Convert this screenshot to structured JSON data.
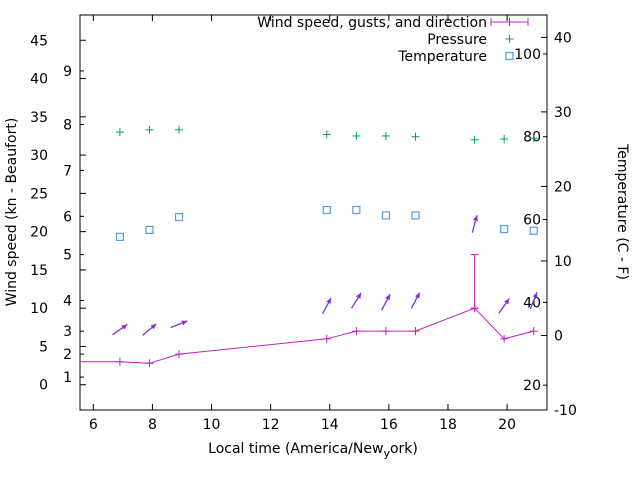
{
  "legend": {
    "items": [
      {
        "label": "Wind speed, gusts, and direction"
      },
      {
        "label": "Pressure"
      },
      {
        "label": "Temperature"
      }
    ]
  },
  "axes": {
    "x_label_pre": "Local time (America/New",
    "x_label_sub": "y",
    "x_label_post": "ork)",
    "y_left_label": "Wind speed (kn - Beaufort)",
    "y_right_label": "Temperature (C - F)"
  },
  "chart_data": {
    "type": "line",
    "title": "",
    "x_axis": {
      "label": "Local time (America/New_york)",
      "ticks": [
        6,
        8,
        10,
        12,
        14,
        16,
        18,
        20
      ],
      "range": [
        5.55,
        21.35
      ]
    },
    "y_left_axis": {
      "label": "Wind speed (kn - Beaufort)",
      "kn_ticks": [
        0,
        5,
        10,
        15,
        20,
        25,
        30,
        35,
        40,
        45
      ],
      "beaufort_ticks": [
        {
          "label": "1",
          "kn": 1
        },
        {
          "label": "2",
          "kn": 4
        },
        {
          "label": "3",
          "kn": 7
        },
        {
          "label": "4",
          "kn": 11
        },
        {
          "label": "5",
          "kn": 17
        },
        {
          "label": "6",
          "kn": 22
        },
        {
          "label": "7",
          "kn": 28
        },
        {
          "label": "8",
          "kn": 34
        },
        {
          "label": "9",
          "kn": 41
        }
      ],
      "range_kn": [
        -3.3,
        48.3
      ]
    },
    "y_right_axis": {
      "label": "Temperature (C - F)",
      "c_ticks": [
        -10,
        0,
        10,
        20,
        30,
        40
      ],
      "f_ticks": [
        20,
        40,
        60,
        80,
        100
      ],
      "range_c": [
        -10,
        43
      ]
    },
    "series": {
      "wind_speed": {
        "name": "Wind speed, gusts, and direction",
        "color": "#c020c0",
        "x": [
          5.55,
          6.9,
          7.9,
          8.9,
          13.9,
          14.9,
          15.9,
          16.9,
          18.9,
          19.9,
          20.9
        ],
        "y": [
          3,
          3,
          2.8,
          4,
          6,
          7,
          7,
          7,
          10,
          6,
          7
        ],
        "first_point_clipped_at_border": true
      },
      "wind_gusts": {
        "color": "#c020c0",
        "points": [
          {
            "x": 18.9,
            "from": 10,
            "to": 17
          }
        ]
      },
      "wind_direction": {
        "color": "#8a2be2",
        "arrows": [
          {
            "x": 6.9,
            "y": 7.2,
            "deg": 35
          },
          {
            "x": 7.9,
            "y": 7.2,
            "deg": 40
          },
          {
            "x": 8.9,
            "y": 7.9,
            "deg": 22
          },
          {
            "x": 13.9,
            "y": 10.3,
            "deg": 62
          },
          {
            "x": 14.9,
            "y": 11.0,
            "deg": 58
          },
          {
            "x": 15.9,
            "y": 10.8,
            "deg": 62
          },
          {
            "x": 16.9,
            "y": 11.0,
            "deg": 62
          },
          {
            "x": 18.9,
            "y": 21.0,
            "deg": 75
          },
          {
            "x": 19.9,
            "y": 10.3,
            "deg": 55
          },
          {
            "x": 20.9,
            "y": 11.0,
            "deg": 68
          }
        ]
      },
      "pressure": {
        "name": "Pressure",
        "color": "#009e73",
        "note": "plotted without visible numeric scale; y given in left-axis (kn) plot units",
        "x": [
          6.9,
          7.9,
          8.9,
          13.9,
          14.9,
          15.9,
          16.9,
          18.9,
          19.9,
          20.9
        ],
        "y_plot": [
          33.0,
          33.3,
          33.3,
          32.7,
          32.5,
          32.5,
          32.4,
          32.0,
          32.1,
          32.2
        ]
      },
      "temperature": {
        "name": "Temperature",
        "color": "#56a0dd",
        "x": [
          6.9,
          7.9,
          8.9,
          13.9,
          14.9,
          15.9,
          16.9,
          19.9,
          20.9
        ],
        "f": [
          55.8,
          57.5,
          60.6,
          62.3,
          62.3,
          61.0,
          61.0,
          57.7,
          57.3
        ],
        "c": [
          13.2,
          14.2,
          15.9,
          16.8,
          16.8,
          16.1,
          16.1,
          14.3,
          14.1
        ]
      }
    }
  }
}
